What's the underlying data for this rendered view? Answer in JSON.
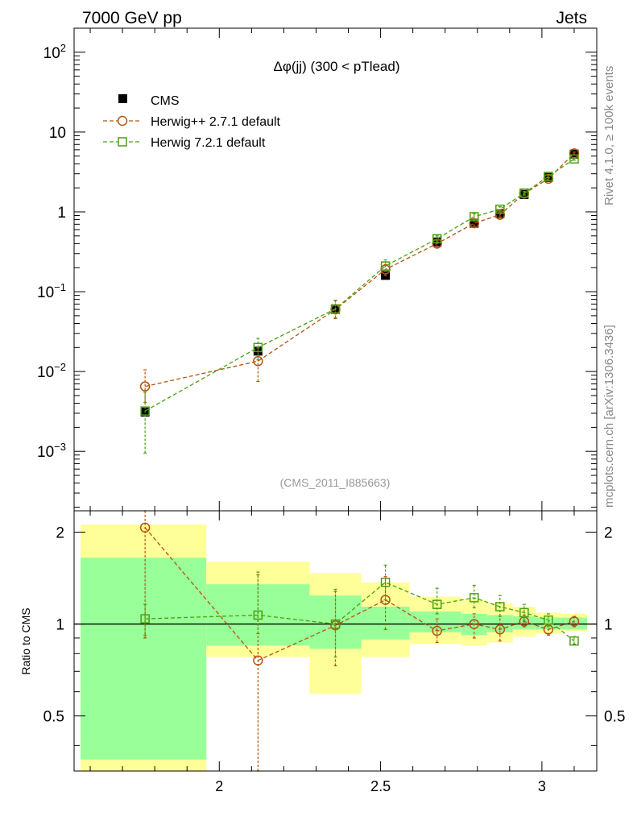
{
  "header": {
    "left": "7000 GeV pp",
    "right": "Jets"
  },
  "side_labels": {
    "rivet": "Rivet 4.1.0, ≥ 100k events",
    "source": "mcplots.cern.ch [arXiv:1306.3436]"
  },
  "chart_data": {
    "type": "scatter",
    "title": "Δφ(jj) (300 < pTlead)",
    "analysis_id": "(CMS_2011_I885663)",
    "xlim": [
      1.55,
      3.17
    ],
    "xticks": [
      "2",
      "2.5",
      "3"
    ],
    "main": {
      "yscale": "log",
      "ylim": [
        0.00018,
        200
      ],
      "yticks": [
        {
          "base": "10",
          "exp": "2",
          "value": 100
        },
        {
          "base": "10",
          "exp": "",
          "value": 10
        },
        {
          "base": "1",
          "exp": "",
          "value": 1
        },
        {
          "base": "10",
          "exp": "−1",
          "value": 0.1
        },
        {
          "base": "10",
          "exp": "−2",
          "value": 0.01
        },
        {
          "base": "10",
          "exp": "−3",
          "value": 0.001
        }
      ]
    },
    "ratio": {
      "ylabel": "Ratio to CMS",
      "yscale": "log",
      "ylim": [
        0.33,
        2.35
      ],
      "yticks": [
        "2",
        "1",
        "0.5"
      ]
    },
    "legend": [
      "CMS",
      "Herwig++ 2.7.1 default",
      "Herwig 7.2.1 default"
    ],
    "bins": [
      {
        "lo": 1.57,
        "hi": 1.96,
        "x": 1.77
      },
      {
        "lo": 1.96,
        "hi": 2.28,
        "x": 2.12
      },
      {
        "lo": 2.28,
        "hi": 2.44,
        "x": 2.36
      },
      {
        "lo": 2.44,
        "hi": 2.59,
        "x": 2.515
      },
      {
        "lo": 2.59,
        "hi": 2.75,
        "x": 2.675
      },
      {
        "lo": 2.75,
        "hi": 2.83,
        "x": 2.79
      },
      {
        "lo": 2.83,
        "hi": 2.91,
        "x": 2.87
      },
      {
        "lo": 2.91,
        "hi": 2.98,
        "x": 2.945
      },
      {
        "lo": 2.98,
        "hi": 3.06,
        "x": 3.02
      },
      {
        "lo": 3.06,
        "hi": 3.14,
        "x": 3.1
      }
    ],
    "series": [
      {
        "name": "CMS",
        "color": "#000000",
        "values": [
          0.0031,
          0.018,
          0.06,
          0.16,
          0.42,
          0.72,
          0.95,
          1.65,
          2.7,
          5.3
        ],
        "band_inner": [
          [
            0.36,
            1.65
          ],
          [
            0.85,
            1.35
          ],
          [
            0.83,
            1.24
          ],
          [
            0.89,
            1.14
          ],
          [
            0.94,
            1.1
          ],
          [
            0.92,
            1.08
          ],
          [
            0.94,
            1.07
          ],
          [
            0.96,
            1.06
          ],
          [
            0.96,
            1.05
          ],
          [
            0.96,
            1.05
          ]
        ],
        "band_outer": [
          [
            0.33,
            2.12
          ],
          [
            0.78,
            1.6
          ],
          [
            0.59,
            1.47
          ],
          [
            0.78,
            1.37
          ],
          [
            0.86,
            1.23
          ],
          [
            0.85,
            1.2
          ],
          [
            0.87,
            1.17
          ],
          [
            0.91,
            1.14
          ],
          [
            0.93,
            1.09
          ],
          [
            0.95,
            1.08
          ]
        ]
      },
      {
        "name": "Herwig++ 2.7.1 default",
        "color": "#b3540f",
        "marker": "circle",
        "values": [
          0.0065,
          0.0135,
          0.06,
          0.19,
          0.4,
          0.72,
          0.92,
          1.7,
          2.6,
          5.4
        ],
        "errors": [
          [
            0.0041,
            0.0105
          ],
          [
            0.0075,
            0.0197
          ],
          [
            0.046,
            0.078
          ],
          [
            0.16,
            0.22
          ],
          [
            0.36,
            0.44
          ],
          [
            0.66,
            0.78
          ],
          [
            0.86,
            0.98
          ],
          [
            1.62,
            1.78
          ],
          [
            2.5,
            2.7
          ],
          [
            5.2,
            5.6
          ]
        ],
        "ratio": [
          2.07,
          0.76,
          0.99,
          1.2,
          0.95,
          1.0,
          0.96,
          1.02,
          0.96,
          1.02
        ],
        "ratio_err": [
          [
            0.9,
            2.4
          ],
          [
            0.33,
            1.45
          ],
          [
            0.73,
            1.28
          ],
          [
            0.96,
            1.43
          ],
          [
            0.87,
            1.04
          ],
          [
            0.9,
            1.08
          ],
          [
            0.88,
            1.06
          ],
          [
            0.98,
            1.07
          ],
          [
            0.92,
            1.0
          ],
          [
            0.98,
            1.06
          ]
        ]
      },
      {
        "name": "Herwig 7.2.1 default",
        "color": "#4aa013",
        "marker": "square",
        "values": [
          0.0032,
          0.02,
          0.061,
          0.21,
          0.46,
          0.87,
          1.08,
          1.72,
          2.78,
          4.6
        ],
        "errors": [
          [
            0.00095,
            0.0055
          ],
          [
            0.014,
            0.026
          ],
          [
            0.047,
            0.077
          ],
          [
            0.18,
            0.25
          ],
          [
            0.42,
            0.5
          ],
          [
            0.79,
            0.95
          ],
          [
            1.0,
            1.16
          ],
          [
            1.64,
            1.8
          ],
          [
            2.68,
            2.88
          ],
          [
            4.45,
            4.75
          ]
        ],
        "ratio": [
          1.04,
          1.07,
          1.0,
          1.37,
          1.16,
          1.22,
          1.14,
          1.09,
          1.03,
          0.88
        ],
        "ratio_err": [
          [
            0.92,
            1.16
          ],
          [
            0.93,
            1.48
          ],
          [
            0.78,
            1.3
          ],
          [
            1.2,
            1.56
          ],
          [
            1.08,
            1.31
          ],
          [
            1.13,
            1.34
          ],
          [
            1.06,
            1.24
          ],
          [
            1.03,
            1.16
          ],
          [
            0.98,
            1.08
          ],
          [
            0.86,
            0.91
          ]
        ]
      }
    ]
  }
}
